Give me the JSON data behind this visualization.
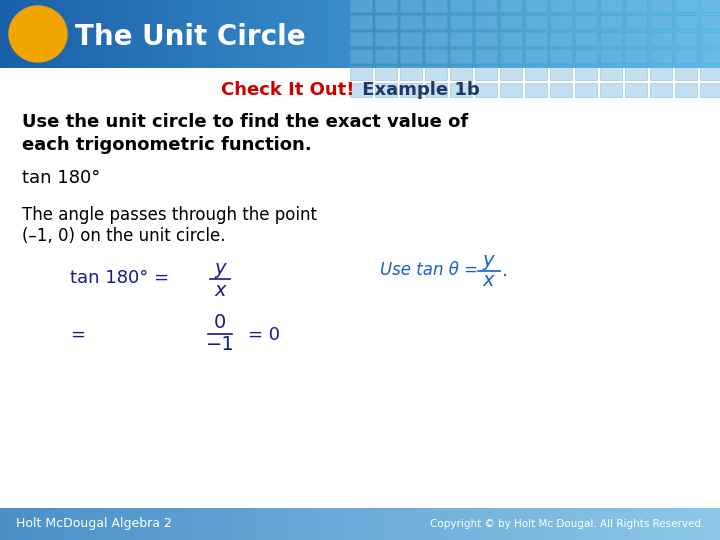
{
  "title": "The Unit Circle",
  "header_text_color": "#ffffff",
  "circle_color": "#f0a500",
  "body_bg_color": "#ffffff",
  "subtitle_red": "Check It Out!",
  "subtitle_blue": " Example 1b",
  "subtitle_red_color": "#cc0000",
  "subtitle_blue_color": "#1f3864",
  "bold_text_line1": "Use the unit circle to find the exact value of",
  "bold_text_line2": "each trigonometric function.",
  "problem_text": "tan 180°",
  "solution_line1": "The angle passes through the point",
  "solution_line2": "(–1, 0) on the unit circle.",
  "footer_left": "Holt McDougal Algebra 2",
  "footer_right": "Copyright © by Holt Mc Dougal. All Rights Reserved.",
  "footer_text_color": "#ffffff",
  "math_color": "#1a1a8c",
  "hint_color": "#1a5fcc",
  "header_color_left": "#1a5faa",
  "header_color_right": "#5bbde8",
  "footer_color_left": "#4a90c8",
  "footer_color_right": "#8dc8e8"
}
